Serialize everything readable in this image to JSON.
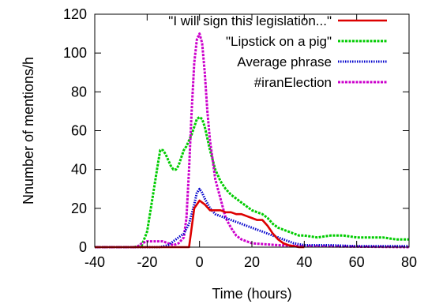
{
  "chart_data": {
    "type": "line",
    "xlabel": "Time (hours)",
    "ylabel": "Nnumber of mentions/h",
    "xlim": [
      -40,
      80
    ],
    "ylim": [
      0,
      120
    ],
    "xticks": [
      -40,
      -20,
      0,
      20,
      40,
      60,
      80
    ],
    "yticks": [
      0,
      20,
      40,
      60,
      80,
      100,
      120
    ],
    "xtick_labels": [
      "-40",
      "-20",
      "0",
      "20",
      "40",
      "60",
      "80"
    ],
    "ytick_labels": [
      "0",
      "20",
      "40",
      "60",
      "80",
      "100",
      "120"
    ],
    "grid": false,
    "legend_position": "top-right",
    "series": [
      {
        "name": "\"I will sign this legislation...\"",
        "color": "#dd0000",
        "style": "solid",
        "x": [
          -40,
          -5,
          -4,
          -2,
          0,
          2,
          4,
          6,
          8,
          10,
          12,
          14,
          16,
          18,
          20,
          22,
          24,
          26,
          28,
          30,
          32,
          34,
          36,
          38,
          40
        ],
        "y": [
          0,
          0,
          0,
          20,
          24,
          22,
          19,
          19,
          19,
          18,
          18,
          17,
          17,
          16,
          15,
          14,
          14,
          11,
          7,
          4,
          2,
          1,
          0.5,
          0,
          0
        ]
      },
      {
        "name": "\"Lipstick on a pig\"",
        "color": "#00cc00",
        "style": "dashed",
        "x": [
          -40,
          -30,
          -25,
          -22,
          -20,
          -18,
          -16,
          -15,
          -14,
          -13,
          -12,
          -11,
          -10,
          -9,
          -8,
          -7,
          -6,
          -5,
          -4,
          -3,
          -2,
          -1,
          0,
          1,
          2,
          3,
          4,
          5,
          6,
          8,
          10,
          12,
          14,
          16,
          18,
          20,
          22,
          24,
          26,
          28,
          30,
          32,
          34,
          36,
          38,
          40,
          45,
          50,
          55,
          60,
          65,
          70,
          75,
          80
        ],
        "y": [
          0,
          0,
          0,
          1,
          8,
          25,
          42,
          50,
          50,
          48,
          45,
          42,
          40,
          40,
          42,
          46,
          50,
          52,
          55,
          58,
          62,
          66,
          67,
          66,
          62,
          56,
          50,
          45,
          40,
          34,
          30,
          27,
          25,
          23,
          21,
          19,
          18,
          17,
          15,
          12,
          10,
          9,
          8,
          7,
          6,
          6,
          5,
          6,
          6,
          5,
          5,
          5,
          4,
          4
        ]
      },
      {
        "name": "Average phrase",
        "color": "#0000cc",
        "style": "dotted",
        "x": [
          -40,
          -30,
          -24,
          -20,
          -15,
          -12,
          -10,
          -8,
          -6,
          -4,
          -2,
          -1,
          0,
          1,
          2,
          4,
          6,
          8,
          10,
          12,
          14,
          16,
          18,
          20,
          22,
          24,
          26,
          28,
          30,
          32,
          34,
          36,
          38,
          40,
          50,
          60,
          70,
          80
        ],
        "y": [
          0,
          0,
          0,
          0,
          0,
          1,
          3,
          5,
          7,
          12,
          22,
          28,
          30,
          28,
          25,
          20,
          17,
          16,
          15,
          14,
          13,
          12,
          11,
          10,
          9,
          8,
          7,
          6,
          5,
          4,
          3,
          2,
          1.5,
          1,
          1,
          0.5,
          0.5,
          0.5
        ]
      },
      {
        "name": "#iranElection",
        "color": "#cc00cc",
        "style": "dashed",
        "x": [
          -40,
          -30,
          -24,
          -22,
          -20,
          -18,
          -16,
          -14,
          -12,
          -10,
          -8,
          -6,
          -5,
          -4,
          -3,
          -2,
          -1,
          0,
          1,
          2,
          3,
          4,
          5,
          6,
          8,
          10,
          12,
          14,
          16,
          20,
          30,
          40,
          80
        ],
        "y": [
          0,
          0,
          0,
          2,
          3,
          3,
          3,
          3,
          2,
          1,
          2,
          5,
          15,
          40,
          70,
          95,
          107,
          110,
          105,
          90,
          70,
          55,
          45,
          35,
          25,
          15,
          10,
          6,
          4,
          2,
          1,
          0.5,
          0
        ]
      }
    ]
  }
}
